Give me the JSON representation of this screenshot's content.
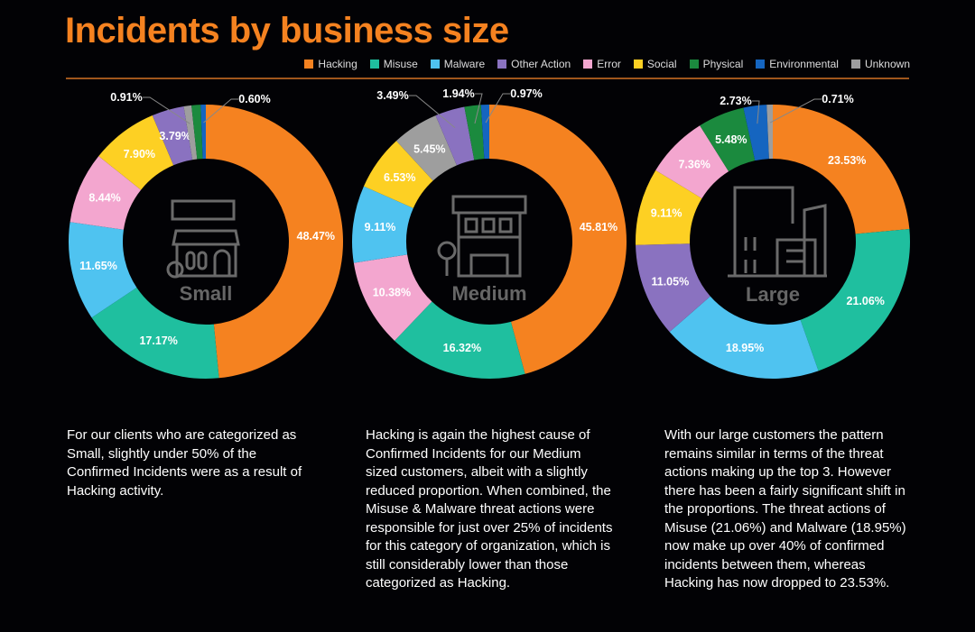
{
  "title": "Incidents by business size",
  "legend": [
    {
      "name": "Hacking",
      "color": "#f58220"
    },
    {
      "name": "Misuse",
      "color": "#1fbf9f"
    },
    {
      "name": "Malware",
      "color": "#4fc3f0"
    },
    {
      "name": "Other Action",
      "color": "#8a72c0"
    },
    {
      "name": "Error",
      "color": "#f3a6cf"
    },
    {
      "name": "Social",
      "color": "#fdd023"
    },
    {
      "name": "Physical",
      "color": "#1b8a3e"
    },
    {
      "name": "Environmental",
      "color": "#1565c0"
    },
    {
      "name": "Unknown",
      "color": "#9e9e9e"
    }
  ],
  "chart_data": [
    {
      "type": "pie",
      "title": "Small",
      "icon": "small-shop-icon",
      "slices": [
        {
          "category": "Hacking",
          "value": 48.47,
          "label": "48.47%"
        },
        {
          "category": "Misuse",
          "value": 17.17,
          "label": "17.17%"
        },
        {
          "category": "Malware",
          "value": 11.65,
          "label": "11.65%"
        },
        {
          "category": "Error",
          "value": 8.44,
          "label": "8.44%"
        },
        {
          "category": "Social",
          "value": 7.9,
          "label": "7.90%"
        },
        {
          "category": "Other Action",
          "value": 3.79,
          "label": "3.79%"
        },
        {
          "category": "Unknown",
          "value": 0.91,
          "label": "0.91%"
        },
        {
          "category": "Physical",
          "value": 1.07,
          "label": ""
        },
        {
          "category": "Environmental",
          "value": 0.6,
          "label": "0.60%"
        }
      ]
    },
    {
      "type": "pie",
      "title": "Medium",
      "icon": "medium-building-icon",
      "slices": [
        {
          "category": "Hacking",
          "value": 45.81,
          "label": "45.81%"
        },
        {
          "category": "Misuse",
          "value": 16.32,
          "label": "16.32%"
        },
        {
          "category": "Error",
          "value": 10.38,
          "label": "10.38%"
        },
        {
          "category": "Malware",
          "value": 9.11,
          "label": "9.11%"
        },
        {
          "category": "Social",
          "value": 6.53,
          "label": "6.53%"
        },
        {
          "category": "Unknown",
          "value": 5.45,
          "label": "5.45%"
        },
        {
          "category": "Other Action",
          "value": 3.49,
          "label": "3.49%"
        },
        {
          "category": "Physical",
          "value": 1.94,
          "label": "1.94%"
        },
        {
          "category": "Environmental",
          "value": 0.97,
          "label": "0.97%"
        }
      ]
    },
    {
      "type": "pie",
      "title": "Large",
      "icon": "large-office-icon",
      "slices": [
        {
          "category": "Hacking",
          "value": 23.53,
          "label": "23.53%"
        },
        {
          "category": "Misuse",
          "value": 21.06,
          "label": "21.06%"
        },
        {
          "category": "Malware",
          "value": 18.95,
          "label": "18.95%"
        },
        {
          "category": "Other Action",
          "value": 11.05,
          "label": "11.05%"
        },
        {
          "category": "Social",
          "value": 9.11,
          "label": "9.11%"
        },
        {
          "category": "Error",
          "value": 7.36,
          "label": "7.36%"
        },
        {
          "category": "Physical",
          "value": 5.48,
          "label": "5.48%"
        },
        {
          "category": "Environmental",
          "value": 2.73,
          "label": "2.73%"
        },
        {
          "category": "Unknown",
          "value": 0.71,
          "label": "0.71%"
        }
      ]
    }
  ],
  "descriptions": [
    "For our clients who are categorized as Small, slightly under 50% of the Confirmed Incidents were as a result of Hacking activity.",
    "Hacking is again the highest cause of Confirmed Incidents for our Medium sized customers, albeit with a slightly reduced proportion. When combined, the Misuse & Malware threat actions were responsible for just over 25% of incidents for this category of organization, which is still considerably lower than those categorized as Hacking.",
    "With our large customers the pattern remains similar in terms of the threat actions making up the top 3. However there has been a fairly significant shift in the proportions. The threat actions of Misuse (21.06%) and Malware (18.95%) now make up over 40% of confirmed incidents between them, whereas Hacking has now dropped to 23.53%."
  ]
}
